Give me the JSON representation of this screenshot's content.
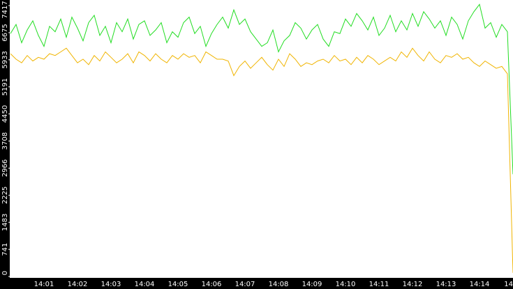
{
  "chart_data": {
    "type": "line",
    "categories": [
      null,
      null,
      null,
      null,
      null,
      null,
      "14:01",
      null,
      null,
      null,
      null,
      null,
      "14:02",
      null,
      null,
      null,
      null,
      null,
      "14:03",
      null,
      null,
      null,
      null,
      null,
      "14:04",
      null,
      null,
      null,
      null,
      null,
      "14:05",
      null,
      null,
      null,
      null,
      null,
      "14:06",
      null,
      null,
      null,
      null,
      null,
      "14:07",
      null,
      null,
      null,
      null,
      null,
      "14:08",
      null,
      null,
      null,
      null,
      null,
      "14:09",
      null,
      null,
      null,
      null,
      null,
      "14:10",
      null,
      null,
      null,
      null,
      null,
      "14:11",
      null,
      null,
      null,
      null,
      null,
      "14:12",
      null,
      null,
      null,
      null,
      null,
      "14:13",
      null,
      null,
      null,
      null,
      null,
      "14:14",
      null,
      null,
      null,
      null,
      null,
      "14"
    ],
    "series": [
      {
        "color": "#22dd22",
        "values": [
          6650,
          6900,
          6400,
          6750,
          7000,
          6600,
          6300,
          6850,
          6700,
          7050,
          6550,
          7100,
          6800,
          6450,
          6950,
          7150,
          6600,
          6850,
          6400,
          6950,
          6700,
          7050,
          6500,
          6900,
          7000,
          6600,
          6750,
          6950,
          6400,
          6700,
          6550,
          6950,
          7100,
          6650,
          6850,
          6300,
          6650,
          6900,
          7100,
          6800,
          7300,
          6900,
          7050,
          6700,
          6500,
          6300,
          6400,
          6750,
          6150,
          6450,
          6600,
          6950,
          6800,
          6500,
          6750,
          6900,
          6500,
          6300,
          6700,
          6650,
          7050,
          6850,
          7200,
          7000,
          6750,
          7100,
          6600,
          6800,
          7150,
          6700,
          7000,
          6750,
          7200,
          6850,
          7250,
          7050,
          6800,
          7000,
          6600,
          7100,
          6900,
          6500,
          7000,
          7250,
          7450,
          6800,
          6950,
          6550,
          6900,
          6700,
          2800
        ]
      },
      {
        "color": "#f0b400",
        "values": [
          6100,
          5950,
          5850,
          6050,
          5900,
          6000,
          5950,
          6100,
          6050,
          6150,
          6250,
          6050,
          5850,
          5950,
          5800,
          6050,
          5900,
          6150,
          6000,
          5850,
          5950,
          6100,
          5850,
          6150,
          6050,
          5900,
          6100,
          5950,
          5850,
          6050,
          5950,
          6100,
          6000,
          6050,
          5850,
          6150,
          6050,
          5950,
          5950,
          5900,
          5500,
          5750,
          5900,
          5700,
          5850,
          6000,
          5800,
          5650,
          5950,
          5750,
          6100,
          5950,
          5750,
          5850,
          5800,
          5900,
          5950,
          5850,
          6050,
          5900,
          5950,
          5800,
          6000,
          5850,
          6050,
          5950,
          5800,
          5900,
          6000,
          5900,
          6150,
          6000,
          6250,
          6050,
          5900,
          6150,
          5950,
          5850,
          6050,
          6000,
          6100,
          5950,
          6000,
          5850,
          5750,
          5900,
          5800,
          5700,
          5750,
          5550,
          100
        ]
      }
    ],
    "ylim": [
      0,
      7570
    ],
    "yticks": [
      0,
      741,
      1483,
      2225,
      2966,
      3708,
      4450,
      5191,
      5933,
      6675,
      7417
    ]
  }
}
